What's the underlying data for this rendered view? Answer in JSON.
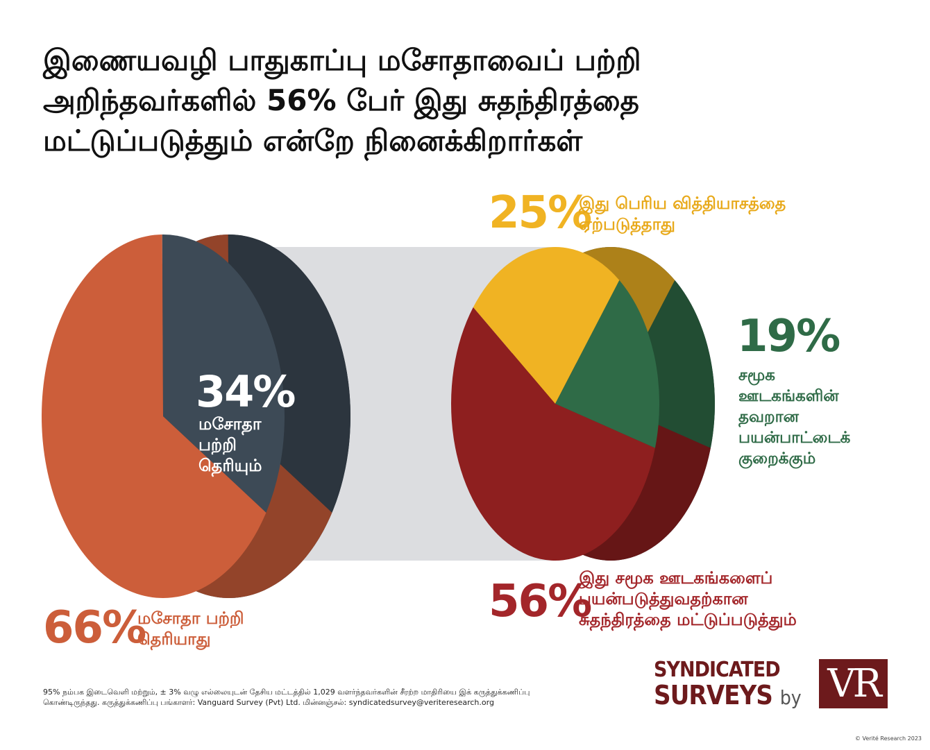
{
  "title_lines": [
    "இணையவழி பாதுகாப்பு மசோதாவைப் பற்றி",
    "அறிந்தவர்களில் 56% பேர் இது சுதந்திரத்தை",
    "மட்டுப்படுத்தும் என்றே நினைக்கிறார்கள்"
  ],
  "chart_data": [
    {
      "type": "pie",
      "slices": [
        {
          "value": 66,
          "percent_label": "66%",
          "label_lines": [
            "மசோதா பற்றி",
            "தெரியாது"
          ],
          "color": "#cc5e3a"
        },
        {
          "value": 34,
          "percent_label": "34%",
          "label_lines": [
            "மசோதா",
            "பற்றி",
            "தெரியும்"
          ],
          "color": "#3d4a56"
        }
      ]
    },
    {
      "type": "pie",
      "slices": [
        {
          "value": 25,
          "percent_label": "25%",
          "label_lines": [
            "இது பெரிய வித்தியாசத்தை",
            "ஏற்படுத்தாது"
          ],
          "color": "#f0b323"
        },
        {
          "value": 19,
          "percent_label": "19%",
          "label_lines": [
            "சமூக",
            "ஊடகங்களின்",
            "தவறான",
            "பயன்பாட்டைக்",
            "குறைக்கும்"
          ],
          "color": "#2f6b47"
        },
        {
          "value": 56,
          "percent_label": "56%",
          "label_lines": [
            "இது சமூக ஊடகங்களைப்",
            "பயன்படுத்துவதற்கான",
            "சுதந்திரத்தை மட்டுப்படுத்தும்"
          ],
          "color": "#8e1f1f"
        }
      ]
    }
  ],
  "label_colors": {
    "aware_not": "#cc5e3a",
    "aware_yes": "#ffffff",
    "no_difference": "#f0b323",
    "reduce_misuse": "#2f6b47",
    "restrict_freedom": "#a3262a"
  },
  "footnote_lines": [
    "95% நம்பக இடைவெளி மற்றும், ± 3% வழு எல்லையுடன் தேசிய மட்டத்தில் 1,029 வளர்ந்தவர்களின் சீரற்ற மாதிரியை இக் கருத்துக்கணிப்பு",
    "கொண்டிருந்தது. கருத்துக்கணிப்பு பங்காளர்: Vanguard Survey (Pvt) Ltd. மின்னஞ்சல்: syndicatedsurvey@veriteresearch.org"
  ],
  "logo": {
    "line1": "SYNDICATED",
    "line2": "SURVEYS",
    "by": "by",
    "mark": "VR"
  },
  "copyright": "© Verité Research 2023"
}
